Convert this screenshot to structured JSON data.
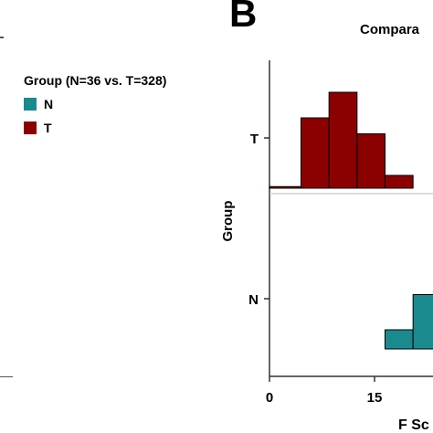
{
  "panel_label": "B",
  "legend": {
    "title": "Group (N=36 vs. T=328)",
    "items": [
      {
        "label": "N",
        "color": "#1b8a8f"
      },
      {
        "label": "T",
        "color": "#8b0000"
      }
    ]
  },
  "chart_data": {
    "type": "bar",
    "title": "Compara",
    "xlabel": "F Sc",
    "ylabel": "Group",
    "x_ticks": [
      "0",
      "15"
    ],
    "groups": [
      "T",
      "N"
    ],
    "xlim": [
      0,
      30
    ],
    "series": [
      {
        "name": "T",
        "color": "#8b0000",
        "bins": [
          {
            "x0": 0,
            "x1": 4.5,
            "value": 0.5
          },
          {
            "x0": 4.5,
            "x1": 8.5,
            "value": 22
          },
          {
            "x0": 8.5,
            "x1": 12.5,
            "value": 30
          },
          {
            "x0": 12.5,
            "x1": 16.5,
            "value": 17
          },
          {
            "x0": 16.5,
            "x1": 20.5,
            "value": 4
          }
        ]
      },
      {
        "name": "N",
        "color": "#1b8a8f",
        "bins": [
          {
            "x0": 16.5,
            "x1": 20.5,
            "value": 6
          },
          {
            "x0": 20.5,
            "x1": 24.5,
            "value": 17
          }
        ]
      }
    ]
  }
}
